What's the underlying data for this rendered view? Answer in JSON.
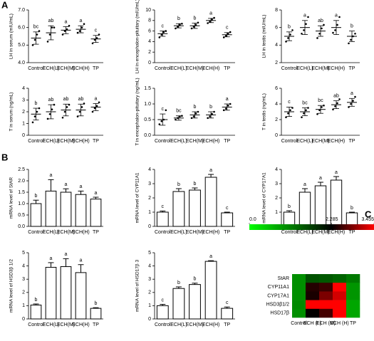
{
  "panel_labels": [
    "A",
    "B",
    "C"
  ],
  "chart_data": [
    {
      "type": "dot",
      "ylabel": "LH in serum (mIU/mL)",
      "categories": [
        "Control",
        "ECH(L)",
        "ECH(M)",
        "ECH(H)",
        "TP"
      ],
      "values": [
        5.4,
        5.7,
        5.85,
        5.9,
        5.35
      ],
      "errors": [
        0.35,
        0.4,
        0.2,
        0.2,
        0.2
      ],
      "points": [
        [
          5.0,
          5.3,
          5.6,
          5.8
        ],
        [
          5.2,
          5.6,
          6.0,
          6.0
        ],
        [
          5.6,
          5.8,
          5.9,
          6.1
        ],
        [
          5.7,
          5.8,
          6.0,
          6.2
        ],
        [
          5.1,
          5.3,
          5.4,
          5.6
        ]
      ],
      "annotations": [
        "bc",
        "ab",
        "a",
        "a",
        "c"
      ],
      "ylim": [
        4,
        7
      ],
      "yticks": [
        {
          "value": 4,
          "label": "4.0"
        },
        {
          "value": 5,
          "label": "5.0"
        },
        {
          "value": 6,
          "label": "6.0"
        },
        {
          "value": 7,
          "label": "7.0"
        }
      ]
    },
    {
      "type": "dot",
      "ylabel": "LH in encephalon-pituitary (mIU/mL)",
      "categories": [
        "Control",
        "ECH(L)",
        "ECH(M)",
        "ECH(H)",
        "TP"
      ],
      "values": [
        5.5,
        7,
        7,
        8,
        5.3
      ],
      "errors": [
        0.5,
        0.4,
        0.5,
        0.4,
        0.4
      ],
      "points": [
        [
          4.8,
          5.3,
          5.8,
          6.0
        ],
        [
          6.5,
          6.8,
          7.2,
          7.4
        ],
        [
          6.5,
          6.8,
          7.2,
          7.6
        ],
        [
          7.5,
          7.8,
          8.2,
          8.5
        ],
        [
          4.8,
          5.1,
          5.5,
          5.8
        ]
      ],
      "annotations": [
        "c",
        "b",
        "b",
        "a",
        "c"
      ],
      "ylim": [
        0,
        10
      ],
      "yticks": [
        0,
        2,
        4,
        6,
        8,
        10
      ]
    },
    {
      "type": "dot",
      "ylabel": "LH in testis (mIU/mL)",
      "categories": [
        "Control",
        "ECH(L)",
        "ECH(M)",
        "ECH(H)",
        "TP"
      ],
      "values": [
        5,
        6,
        5.6,
        6,
        5
      ],
      "errors": [
        0.5,
        0.8,
        0.6,
        0.8,
        0.6
      ],
      "points": [
        [
          4.4,
          4.8,
          5.2,
          5.7
        ],
        [
          5.3,
          5.7,
          6.4,
          7.2
        ],
        [
          4.8,
          5.3,
          5.9,
          6.3
        ],
        [
          5.4,
          5.7,
          6.3,
          7.2
        ],
        [
          4.2,
          4.6,
          5.0,
          5.3
        ]
      ],
      "annotations": [
        "b",
        "a",
        "ab",
        "a",
        "b"
      ],
      "ylim": [
        2,
        8
      ],
      "yticks": [
        2,
        4,
        6,
        8
      ]
    },
    {
      "type": "dot",
      "ylabel": "T in serum (ng/mL)",
      "categories": [
        "Control",
        "ECH(L)",
        "ECH(M)",
        "ECH(H)",
        "TP"
      ],
      "values": [
        1.8,
        2,
        2.15,
        2.15,
        2.4
      ],
      "errors": [
        0.5,
        0.6,
        0.5,
        0.5,
        0.3
      ],
      "points": [
        [
          1.1,
          1.6,
          2.0,
          2.3
        ],
        [
          1.4,
          1.8,
          2.2,
          2.6
        ],
        [
          1.5,
          2.0,
          2.4,
          2.6
        ],
        [
          1.6,
          2.0,
          2.4,
          2.7
        ],
        [
          2.0,
          2.3,
          2.5,
          2.8
        ]
      ],
      "annotations": [
        "b",
        "ab",
        "ab",
        "ab",
        "a"
      ],
      "ylim": [
        0,
        4
      ],
      "yticks": [
        0,
        1,
        2,
        3,
        4
      ]
    },
    {
      "type": "dot",
      "ylabel": "T in encephalon-pituitary (ng/mL)",
      "categories": [
        "Control",
        "ECH(L)",
        "ECH(M)",
        "ECH(H)",
        "TP"
      ],
      "values": [
        0.5,
        0.55,
        0.65,
        0.65,
        0.9
      ],
      "errors": [
        0.18,
        0.07,
        0.1,
        0.1,
        0.1
      ],
      "points": [
        [
          0.35,
          0.45,
          0.5,
          0.8
        ],
        [
          0.5,
          0.55,
          0.6,
          0.62
        ],
        [
          0.55,
          0.6,
          0.7,
          0.75
        ],
        [
          0.55,
          0.6,
          0.68,
          0.75
        ],
        [
          0.8,
          0.85,
          0.95,
          1.0
        ]
      ],
      "annotations": [
        "c",
        "bc",
        "b",
        "b",
        "a"
      ],
      "ylim": [
        0,
        1.5
      ],
      "yticks": [
        {
          "value": 0,
          "label": "0.0"
        },
        0.5,
        {
          "value": 1,
          "label": "1.0"
        },
        1.5
      ]
    },
    {
      "type": "dot",
      "ylabel": "T in testis (ng/mL)",
      "categories": [
        "Control",
        "ECH(L)",
        "ECH(M)",
        "ECH(H)",
        "TP"
      ],
      "values": [
        3,
        3,
        3.3,
        3.9,
        4.2
      ],
      "errors": [
        0.6,
        0.5,
        0.5,
        0.5,
        0.5
      ],
      "points": [
        [
          2.3,
          2.8,
          3.2,
          3.5
        ],
        [
          2.3,
          2.8,
          3.2,
          3.5
        ],
        [
          2.7,
          3.2,
          3.6,
          3.8
        ],
        [
          3.3,
          3.7,
          4.1,
          4.6
        ],
        [
          3.6,
          4.0,
          4.4,
          4.9
        ]
      ],
      "annotations": [
        "c",
        "bc",
        "bc",
        "ab",
        "a"
      ],
      "ylim": [
        0,
        6
      ],
      "yticks": [
        0,
        2,
        4,
        6
      ]
    },
    {
      "type": "bar",
      "ylabel": "mRNA level of StAR",
      "categories": [
        "Control",
        "ECH(L)",
        "ECH(M)",
        "ECH(H)",
        "TP"
      ],
      "values": [
        1.0,
        1.55,
        1.5,
        1.4,
        1.2
      ],
      "errors": [
        0.15,
        0.5,
        0.15,
        0.15,
        0.08
      ],
      "annotations": [
        "b",
        "a",
        "a",
        "a",
        "a"
      ],
      "ylim": [
        0,
        2.5
      ],
      "yticks": [
        {
          "value": 0,
          "label": "0.0"
        },
        0.5,
        {
          "value": 1,
          "label": "1.0"
        },
        1.5,
        {
          "value": 2,
          "label": "2.0"
        },
        2.5
      ]
    },
    {
      "type": "bar",
      "ylabel": "mRNA level of CYP11A1",
      "categories": [
        "Control",
        "ECH(L)",
        "ECH(M)",
        "ECH(H)",
        "TP"
      ],
      "values": [
        1,
        2.45,
        2.55,
        3.45,
        0.95
      ],
      "errors": [
        0.08,
        0.2,
        0.15,
        0.2,
        0.05
      ],
      "annotations": [
        "c",
        "b",
        "b",
        "a",
        "c"
      ],
      "ylim": [
        0,
        4
      ],
      "yticks": [
        0,
        1,
        2,
        3,
        4
      ]
    },
    {
      "type": "bar",
      "ylabel": "mRNA level of CYP17A1",
      "categories": [
        "Control",
        "ECH(L)",
        "ECH(M)",
        "ECH(H)",
        "TP"
      ],
      "values": [
        1,
        2.4,
        2.85,
        3.25,
        0.95
      ],
      "errors": [
        0.1,
        0.25,
        0.25,
        0.25,
        0.05
      ],
      "annotations": [
        "b",
        "a",
        "a",
        "a",
        "b"
      ],
      "ylim": [
        0,
        4
      ],
      "yticks": [
        0,
        1,
        2,
        3,
        4
      ]
    },
    {
      "type": "bar",
      "ylabel": "mRNA level of HSD3β 1/2",
      "categories": [
        "Control",
        "ECH(L)",
        "ECH(M)",
        "ECH(H)",
        "TP"
      ],
      "values": [
        1.05,
        3.9,
        3.95,
        3.5,
        0.8
      ],
      "errors": [
        0.08,
        0.35,
        0.6,
        0.6,
        0.05
      ],
      "annotations": [
        "b",
        "a",
        "a",
        "a",
        "b"
      ],
      "ylim": [
        0,
        5
      ],
      "yticks": [
        0,
        1,
        2,
        3,
        4,
        5
      ]
    },
    {
      "type": "bar",
      "ylabel": "mRNA level of HSD17β 3",
      "categories": [
        "Control",
        "ECH(L)",
        "ECH(M)",
        "ECH(H)",
        "TP"
      ],
      "values": [
        1,
        2.3,
        2.6,
        4.35,
        0.8
      ],
      "errors": [
        0.1,
        0.12,
        0.1,
        0.05,
        0.1
      ],
      "annotations": [
        "c",
        "b",
        "b",
        "a",
        "c"
      ],
      "ylim": [
        0,
        5
      ],
      "yticks": [
        0,
        1,
        2,
        3,
        4,
        5
      ]
    },
    {
      "type": "heatmap",
      "rows": [
        "StAR",
        "CYP11A1",
        "CYP17A1",
        "HSD3β1/2",
        "HSD17β"
      ],
      "columns": [
        "Control",
        "ECH (L)",
        "ECH (M)",
        "ECH (H)",
        "TP"
      ],
      "matrix": [
        [
          1.0,
          1.55,
          1.5,
          1.4,
          1.2
        ],
        [
          1,
          2.45,
          2.55,
          3.45,
          0.95
        ],
        [
          1,
          2.4,
          2.85,
          3.25,
          0.95
        ],
        [
          1.05,
          3.9,
          3.95,
          3.5,
          0.8
        ],
        [
          1,
          2.3,
          2.6,
          4.35,
          0.8
        ]
      ],
      "zticks": [
        {
          "value": 0,
          "label": "0.0"
        },
        2.285,
        3.455
      ],
      "colors": [
        "#00ff00",
        "#000000",
        "#ff0000"
      ]
    }
  ]
}
